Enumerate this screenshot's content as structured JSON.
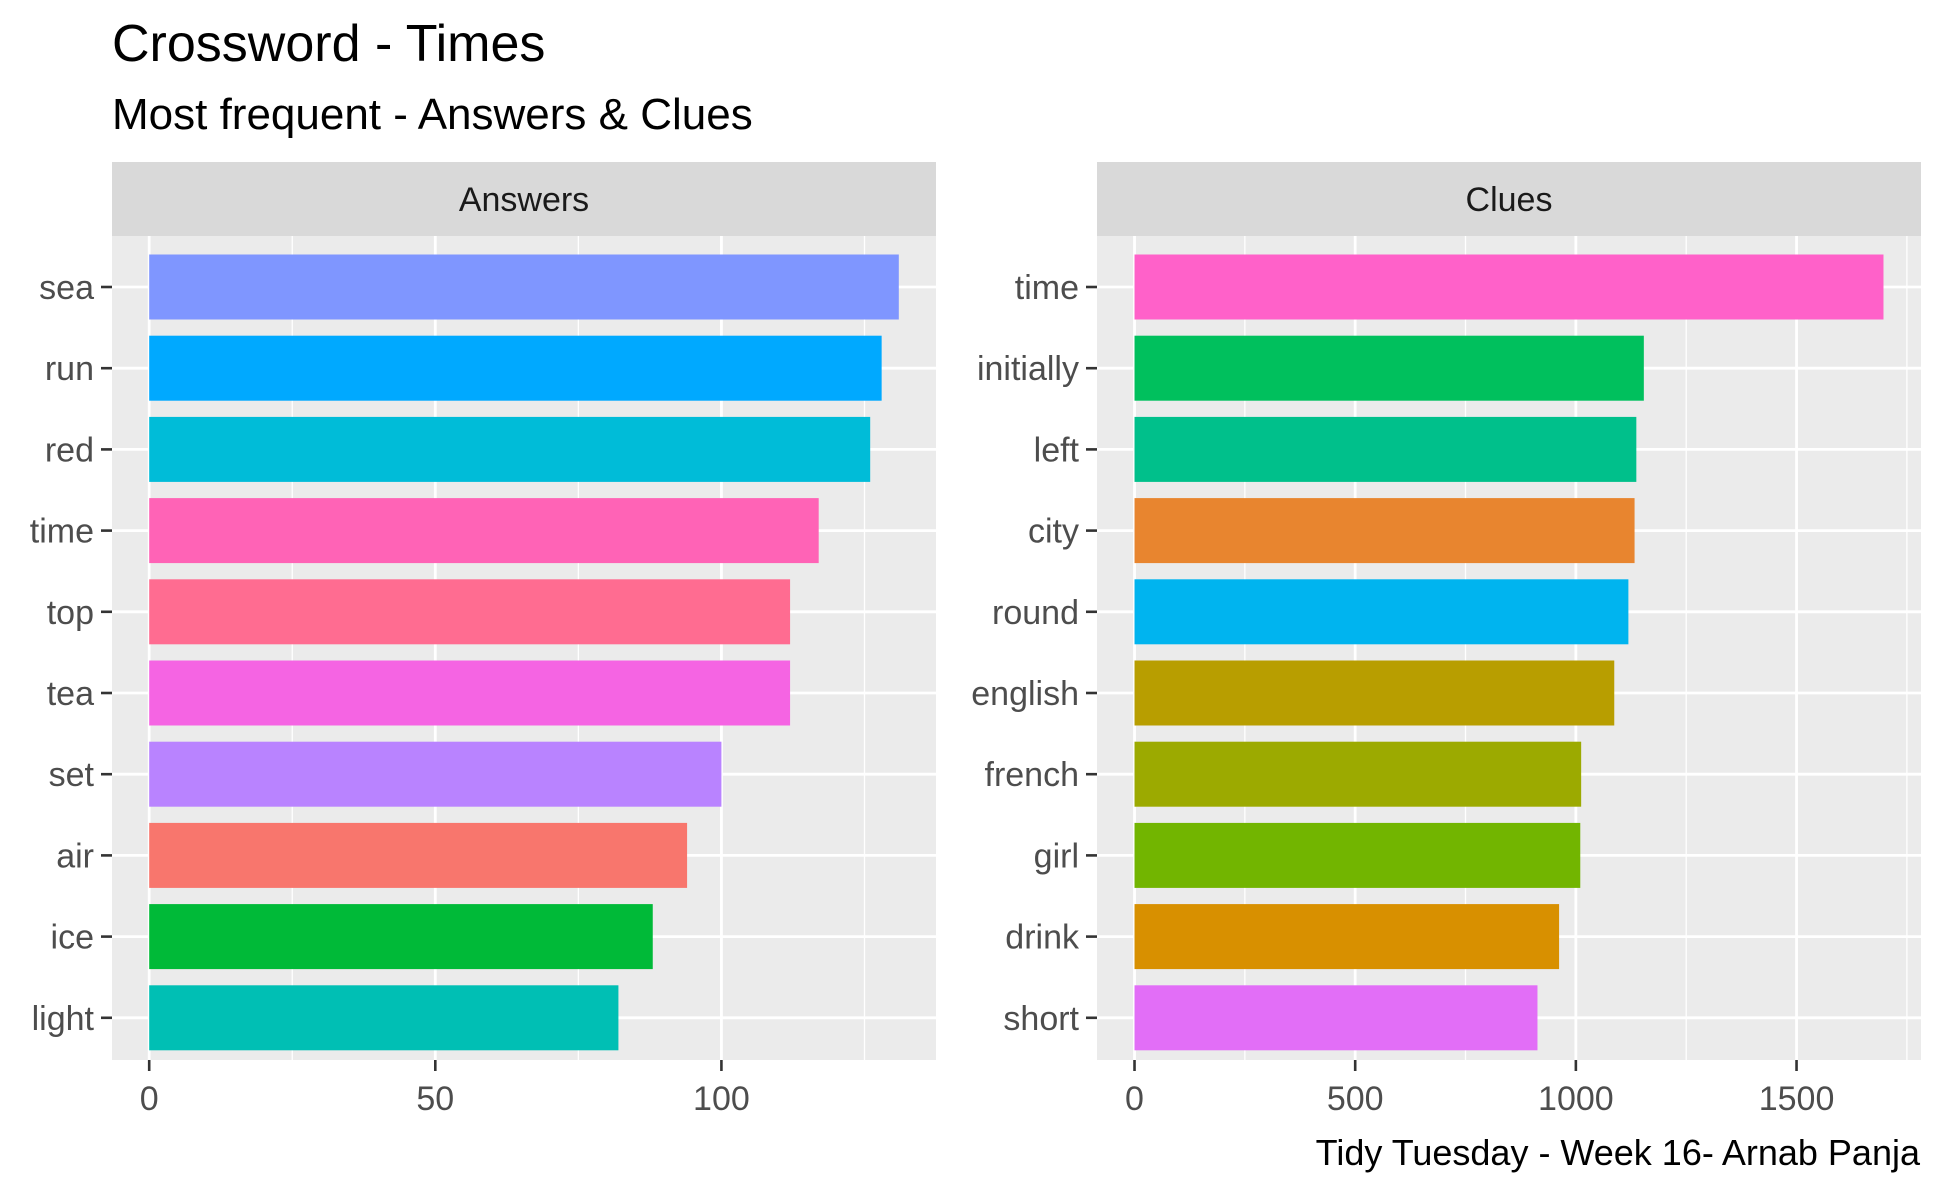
{
  "title": "Crossword - Times",
  "subtitle": "Most frequent - Answers & Clues",
  "caption": "Tidy Tuesday - Week 16- Arnab Panja",
  "chart_data": [
    {
      "type": "bar",
      "orientation": "horizontal",
      "facet": "Answers",
      "categories": [
        "sea",
        "run",
        "red",
        "time",
        "top",
        "tea",
        "set",
        "air",
        "ice",
        "light"
      ],
      "values": [
        131,
        128,
        126,
        117,
        112,
        112,
        100,
        94,
        88,
        82
      ],
      "colors": [
        "#7F96FF",
        "#00A9FF",
        "#00BCD8",
        "#FF63B6",
        "#FF6C91",
        "#F564E3",
        "#B983FF",
        "#F8766D",
        "#00BA38",
        "#00BFB4"
      ],
      "xlim": [
        -6.5,
        137.5
      ],
      "xticks": [
        0,
        50,
        100
      ],
      "grid": true
    },
    {
      "type": "bar",
      "orientation": "horizontal",
      "facet": "Clues",
      "categories": [
        "time",
        "initially",
        "left",
        "city",
        "round",
        "english",
        "french",
        "girl",
        "drink",
        "short"
      ],
      "values": [
        1697,
        1154,
        1137,
        1133,
        1119,
        1087,
        1012,
        1010,
        962,
        913
      ],
      "colors": [
        "#FF61C9",
        "#00C05D",
        "#00C08B",
        "#E8852F",
        "#00B4EF",
        "#B89E00",
        "#9CAA00",
        "#72B500",
        "#D89000",
        "#E26EF7"
      ],
      "xlim": [
        -85,
        1782
      ],
      "xticks": [
        0,
        500,
        1000,
        1500
      ],
      "grid": true
    }
  ]
}
